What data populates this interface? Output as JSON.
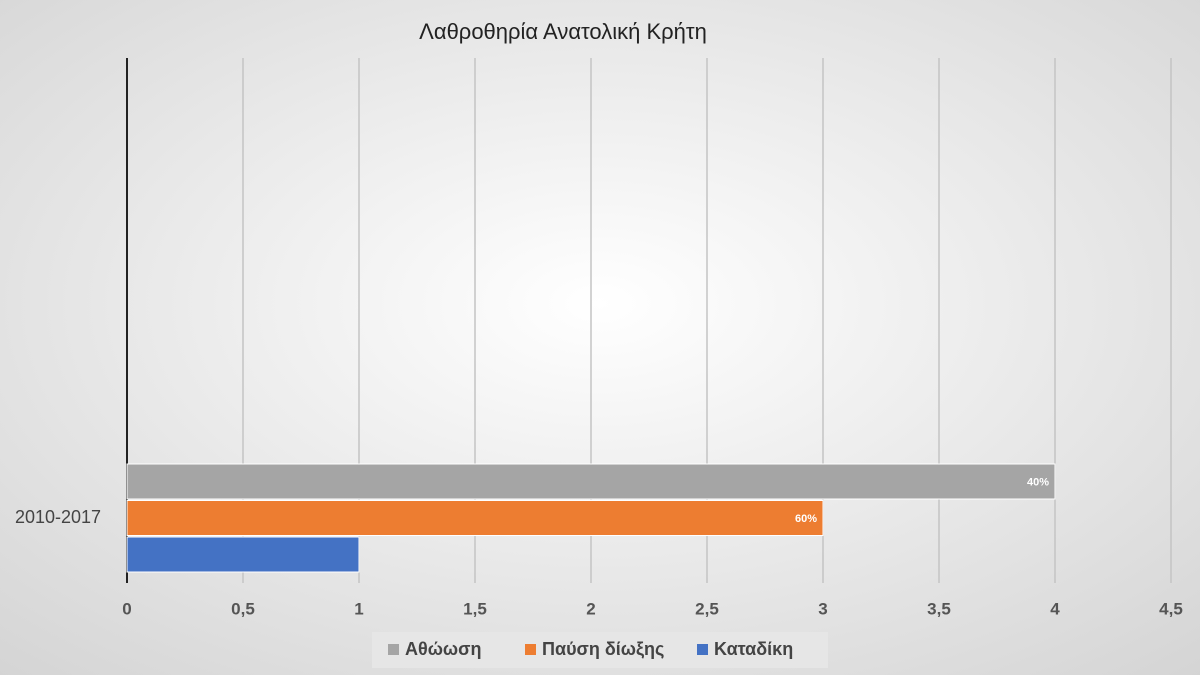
{
  "chart_data": {
    "type": "hbar",
    "title": "Λαθροθηρία Ανατολική Κρήτη",
    "categories": [
      "2010-2017"
    ],
    "series": [
      {
        "name": "Αθώωση",
        "color": "#a5a5a5",
        "values": [
          4
        ],
        "annotation": "40%"
      },
      {
        "name": "Παύση δίωξης",
        "color": "#ed7d31",
        "values": [
          3
        ],
        "annotation": "60%"
      },
      {
        "name": "Καταδίκη",
        "color": "#4472c4",
        "values": [
          1
        ]
      }
    ],
    "xlim": [
      0,
      4.5
    ],
    "xticks": [
      0,
      {
        "value": 0.5,
        "label": "0,5"
      },
      1,
      {
        "value": 1.5,
        "label": "1,5"
      },
      2,
      {
        "value": 2.5,
        "label": "2,5"
      },
      3,
      {
        "value": 3.5,
        "label": "3,5"
      },
      4,
      {
        "value": 4.5,
        "label": "4,5"
      }
    ],
    "grid": true,
    "legend": "bottom"
  }
}
